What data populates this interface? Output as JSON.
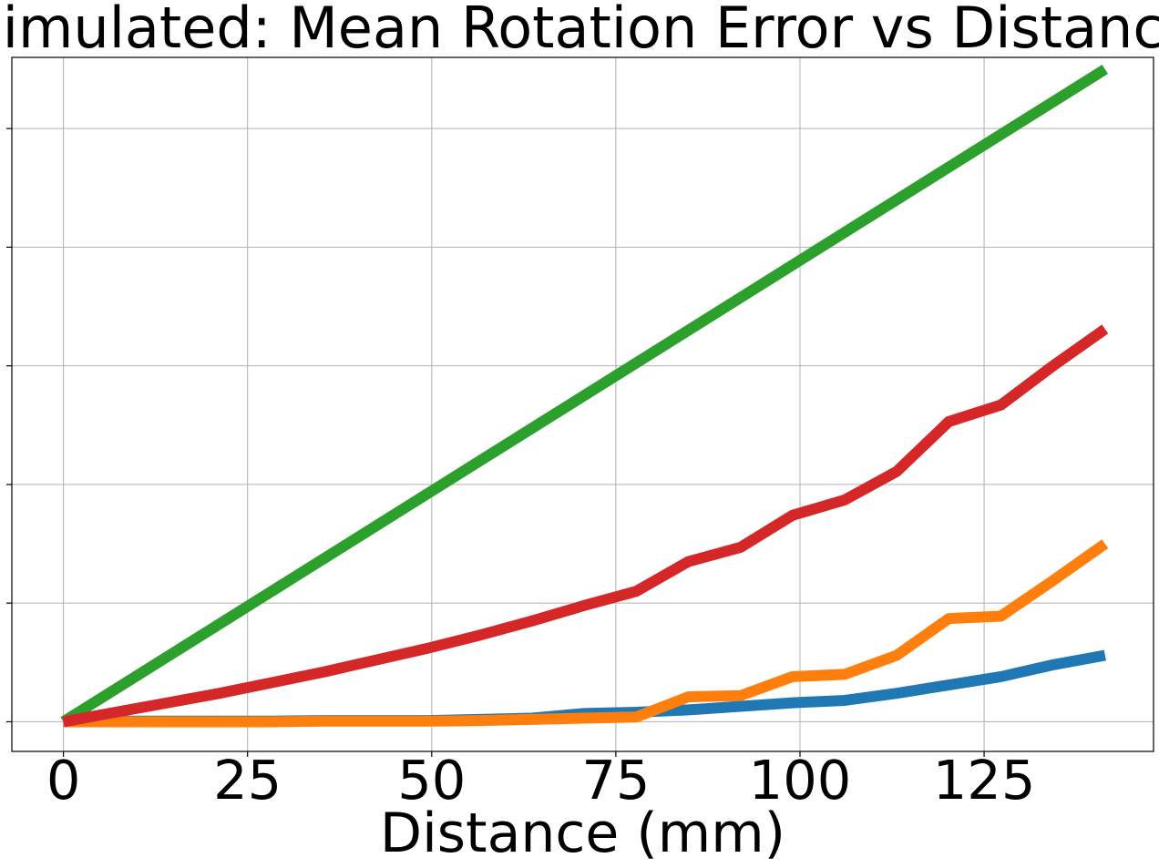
{
  "chart_data": {
    "type": "line",
    "title": "Simulated: Mean Rotation Error vs Distance",
    "xlabel": "Distance (mm)",
    "ylabel": "",
    "xlim": [
      -7,
      148
    ],
    "ylim": [
      -0.25,
      5.6
    ],
    "grid": true,
    "x_ticks": [
      0,
      25,
      50,
      75,
      100,
      125
    ],
    "y_ticks": [
      0,
      1,
      2,
      3,
      4,
      5
    ],
    "y_tick_labels_visible": false,
    "series": [
      {
        "name": "blue",
        "color": "#1f77b4",
        "x": [
          0,
          7.07,
          14.14,
          21.21,
          28.28,
          35.36,
          42.43,
          49.5,
          56.57,
          63.64,
          70.71,
          77.78,
          84.85,
          91.92,
          98.99,
          106.07,
          113.14,
          120.21,
          127.28,
          134.35,
          141.42
        ],
        "y": [
          0,
          0.005,
          0.005,
          0.005,
          0.005,
          0.01,
          0.01,
          0.01,
          0.02,
          0.03,
          0.07,
          0.08,
          0.1,
          0.13,
          0.16,
          0.18,
          0.24,
          0.31,
          0.38,
          0.48,
          0.56
        ]
      },
      {
        "name": "orange",
        "color": "#ff7f0e",
        "x": [
          0,
          7.07,
          14.14,
          21.21,
          28.28,
          35.36,
          42.43,
          49.5,
          56.57,
          63.64,
          70.71,
          77.78,
          84.85,
          91.92,
          98.99,
          106.07,
          113.14,
          120.21,
          127.28,
          134.35,
          141.42
        ],
        "y": [
          0,
          0,
          0,
          0,
          0,
          0.005,
          0.005,
          0.005,
          0.01,
          0.02,
          0.03,
          0.04,
          0.21,
          0.22,
          0.38,
          0.4,
          0.56,
          0.87,
          0.89,
          1.19,
          1.5
        ]
      },
      {
        "name": "green",
        "color": "#2ca02c",
        "x": [
          0,
          141.42
        ],
        "y": [
          0,
          5.5
        ]
      },
      {
        "name": "red",
        "color": "#d62728",
        "x": [
          0,
          7.07,
          14.14,
          21.21,
          28.28,
          35.36,
          42.43,
          49.5,
          56.57,
          63.64,
          70.71,
          77.78,
          84.85,
          91.92,
          98.99,
          106.07,
          113.14,
          120.21,
          127.28,
          134.35,
          141.42
        ],
        "y": [
          0,
          0.08,
          0.16,
          0.24,
          0.33,
          0.42,
          0.52,
          0.62,
          0.73,
          0.85,
          0.98,
          1.1,
          1.35,
          1.47,
          1.74,
          1.87,
          2.11,
          2.53,
          2.67,
          3.0,
          3.31
        ]
      }
    ]
  }
}
